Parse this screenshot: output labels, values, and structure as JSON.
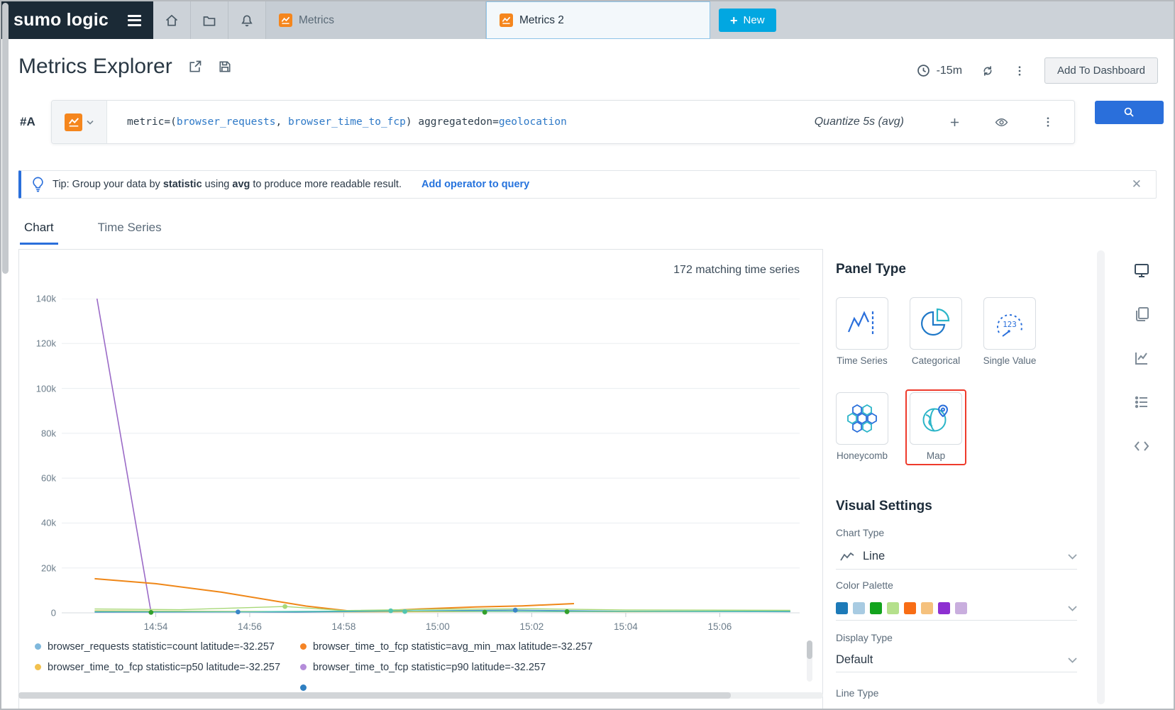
{
  "topbar": {
    "logo_text": "sumo logic",
    "tab_metrics": "Metrics",
    "tab_metrics_2": "Metrics 2",
    "new_button": "New"
  },
  "header": {
    "title": "Metrics Explorer",
    "time_range": "-15m",
    "add_to_dashboard": "Add To Dashboard"
  },
  "query": {
    "row_label": "#A",
    "parts": [
      {
        "text": "metric=(",
        "type": "plain"
      },
      {
        "text": "browser_requests",
        "type": "token"
      },
      {
        "text": ", ",
        "type": "plain"
      },
      {
        "text": "browser_time_to_fcp",
        "type": "token"
      },
      {
        "text": ") ",
        "type": "plain"
      },
      {
        "text": "aggregatedon=",
        "type": "plain"
      },
      {
        "text": "geolocation",
        "type": "token"
      }
    ],
    "quantize": "Quantize 5s (avg)"
  },
  "tip": {
    "prefix": "Tip: Group your data by ",
    "bold1": "statistic",
    "middle": " using ",
    "bold2": "avg",
    "suffix": " to produce more readable result.",
    "link": "Add operator to query"
  },
  "view_tabs": {
    "chart": "Chart",
    "time_series": "Time Series"
  },
  "chart": {
    "matching": "172 matching time series"
  },
  "chart_data": {
    "type": "line",
    "title": "",
    "x_domain": [
      0,
      15.7
    ],
    "ylim": [
      0,
      140000
    ],
    "grid": true,
    "y_ticks": [
      {
        "label": "140k",
        "v": 140000
      },
      {
        "label": "120k",
        "v": 120000
      },
      {
        "label": "100k",
        "v": 100000
      },
      {
        "label": "80k",
        "v": 80000
      },
      {
        "label": "60k",
        "v": 60000
      },
      {
        "label": "40k",
        "v": 40000
      },
      {
        "label": "20k",
        "v": 20000
      },
      {
        "label": "0",
        "v": 0
      }
    ],
    "x_ticks": [
      {
        "label": "14:54",
        "m": 2
      },
      {
        "label": "14:56",
        "m": 4
      },
      {
        "label": "14:58",
        "m": 6
      },
      {
        "label": "15:00",
        "m": 8
      },
      {
        "label": "15:02",
        "m": 10
      },
      {
        "label": "15:04",
        "m": 12
      },
      {
        "label": "15:06",
        "m": 14
      }
    ],
    "series": [
      {
        "name": "browser_time_to_fcp statistic=p90 latitude=-32.257",
        "color": "#9b6bc7",
        "width": 1.6,
        "points": [
          [
            0.75,
            140000
          ],
          [
            1.9,
            200
          ]
        ]
      },
      {
        "name": "browser_time_to_fcp statistic=avg_min_max latitude=-32.257",
        "color": "#ef8718",
        "width": 2,
        "points": [
          [
            0.7,
            15200
          ],
          [
            2.0,
            13000
          ],
          [
            3.4,
            9200
          ],
          [
            5.2,
            3000
          ],
          [
            6.1,
            900
          ],
          [
            6.6,
            700
          ],
          [
            7.6,
            1700
          ],
          [
            8.8,
            2600
          ],
          [
            9.8,
            3100
          ],
          [
            10.9,
            4100
          ]
        ]
      },
      {
        "name": "browser_time_to_fcp statistic=p50 latitude=-32.257",
        "color": "#eec643",
        "width": 1.4,
        "points": [
          [
            0.7,
            900
          ],
          [
            3,
            700
          ],
          [
            6,
            400
          ],
          [
            9,
            600
          ],
          [
            12,
            500
          ],
          [
            15.5,
            600
          ]
        ]
      },
      {
        "name": "browser_requests statistic=count latitude=-32.257",
        "color": "#4a90c4",
        "width": 1.4,
        "points": [
          [
            0.7,
            300
          ],
          [
            3.75,
            400
          ],
          [
            5,
            300
          ],
          [
            7,
            800
          ],
          [
            9.65,
            1200
          ],
          [
            12,
            700
          ],
          [
            15.5,
            500
          ]
        ]
      },
      {
        "name": "",
        "color": "#a8d878",
        "width": 1.4,
        "points": [
          [
            0.7,
            1700
          ],
          [
            2.5,
            1400
          ],
          [
            4.75,
            2800
          ],
          [
            6,
            1000
          ],
          [
            8,
            1600
          ],
          [
            10,
            1800
          ],
          [
            12,
            1300
          ],
          [
            15.5,
            1100
          ]
        ]
      },
      {
        "name": "",
        "color": "#52c5b0",
        "width": 1.4,
        "points": [
          [
            0.7,
            600
          ],
          [
            4,
            500
          ],
          [
            7,
            900
          ],
          [
            10,
            600
          ],
          [
            15.5,
            700
          ]
        ]
      }
    ],
    "markers": [
      {
        "x": 1.9,
        "y": 200,
        "color": "#33a02c"
      },
      {
        "x": 3.75,
        "y": 400,
        "color": "#3a86c8"
      },
      {
        "x": 4.75,
        "y": 2800,
        "color": "#a8d878"
      },
      {
        "x": 7.0,
        "y": 900,
        "color": "#52c5b0"
      },
      {
        "x": 7.3,
        "y": 600,
        "color": "#52c5b0"
      },
      {
        "x": 9.0,
        "y": 250,
        "color": "#33a02c"
      },
      {
        "x": 9.65,
        "y": 1200,
        "color": "#3a86c8"
      },
      {
        "x": 10.75,
        "y": 500,
        "color": "#33a02c"
      }
    ]
  },
  "legend": {
    "cells": [
      {
        "color": "#7fb8dc",
        "label": "browser_requests statistic=count latitude=-32.257"
      },
      {
        "color": "#f58426",
        "label": "browser_time_to_fcp statistic=avg_min_max latitude=-32.257"
      },
      {
        "color": "#f2c14e",
        "label": "browser_time_to_fcp statistic=p50 latitude=-32.257"
      },
      {
        "color": "#b48cd9",
        "label": "browser_time_to_fcp statistic=p90 latitude=-32.257"
      },
      null,
      {
        "color": "#2f7fc1",
        "label": ""
      }
    ]
  },
  "panel": {
    "title": "Panel Type",
    "types": [
      {
        "label": "Time Series"
      },
      {
        "label": "Categorical"
      },
      {
        "label": "Single Value",
        "icon_text": "123"
      },
      {
        "label": "Honeycomb"
      },
      {
        "label": "Map",
        "selected": true
      }
    ],
    "selected_outline_color": "#ee3b2c",
    "visual_settings_title": "Visual Settings",
    "chart_type": {
      "label": "Chart Type",
      "value": "Line"
    },
    "color_palette": {
      "label": "Color Palette",
      "colors": [
        "#1d7ab8",
        "#a8cbe2",
        "#12a31d",
        "#b5e08c",
        "#f86d15",
        "#f5c17d",
        "#8d2fd1",
        "#c9aede"
      ]
    },
    "display_type": {
      "label": "Display Type",
      "value": "Default"
    },
    "line_type": {
      "label": "Line Type"
    }
  },
  "colors": {
    "accent_blue": "#2a6fdb",
    "new_button_blue": "#02a7e1",
    "navy_header": "#1b2a36",
    "metrics_icon_orange": "#f5861d"
  }
}
